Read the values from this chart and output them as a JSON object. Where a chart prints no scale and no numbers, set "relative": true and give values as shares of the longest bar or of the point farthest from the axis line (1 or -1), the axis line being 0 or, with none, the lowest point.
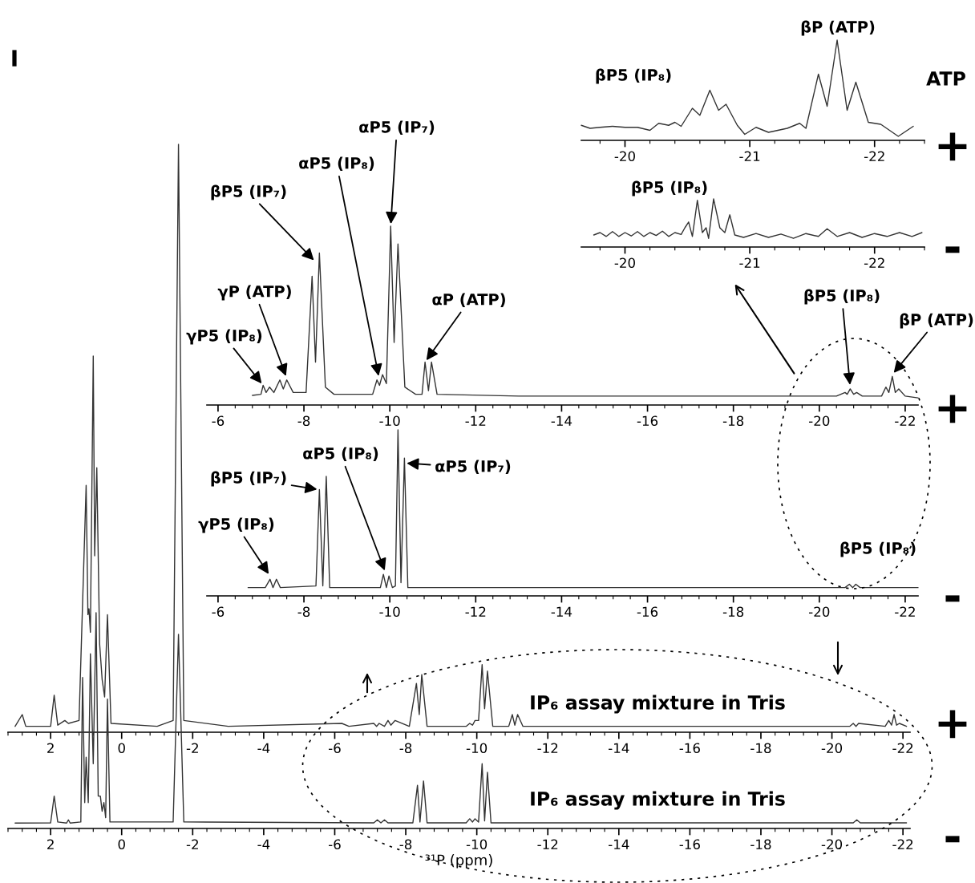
{
  "chart_data": [
    {
      "type": "line",
      "relative": true,
      "xlim": [
        -19.65,
        -22.4
      ],
      "xticks": [
        -20,
        -21,
        -22
      ],
      "annotations": [
        "I",
        "ATP",
        "+",
        {
          "text": "βP5 (IP₈)",
          "x": -20.68,
          "y": 0.5
        },
        {
          "text": "βP (ATP)",
          "x": -21.7,
          "y": 1.0
        }
      ],
      "series": [
        {
          "color": "#333333",
          "x": [
            -19.65,
            -19.72,
            -19.8,
            -19.9,
            -20.0,
            -20.1,
            -20.2,
            -20.27,
            -20.35,
            -20.4,
            -20.45,
            -20.54,
            -20.6,
            -20.68,
            -20.75,
            -20.81,
            -20.9,
            -20.96,
            -21.05,
            -21.15,
            -21.3,
            -21.4,
            -21.45,
            -21.55,
            -21.62,
            -21.7,
            -21.78,
            -21.85,
            -21.95,
            -22.05,
            -22.19,
            -22.31
          ],
          "values": [
            0.15,
            0.12,
            0.13,
            0.14,
            0.13,
            0.13,
            0.1,
            0.17,
            0.15,
            0.18,
            0.14,
            0.32,
            0.25,
            0.5,
            0.3,
            0.36,
            0.15,
            0.06,
            0.13,
            0.08,
            0.12,
            0.17,
            0.12,
            0.66,
            0.34,
            1.0,
            0.3,
            0.58,
            0.18,
            0.16,
            0.04,
            0.14
          ]
        }
      ]
    },
    {
      "type": "line",
      "relative": true,
      "xlim": [
        -19.65,
        -22.4
      ],
      "xticks": [
        -20,
        -21,
        -22
      ],
      "annotations": [
        "-",
        {
          "text": "βP5 (IP₈)",
          "x": -20.71,
          "y": 1.0
        }
      ],
      "series": [
        {
          "color": "#333333",
          "x": [
            -19.75,
            -19.8,
            -19.85,
            -19.9,
            -19.95,
            -20.0,
            -20.05,
            -20.1,
            -20.15,
            -20.2,
            -20.25,
            -20.3,
            -20.35,
            -20.4,
            -20.45,
            -20.48,
            -20.51,
            -20.54,
            -20.58,
            -20.62,
            -20.65,
            -20.67,
            -20.71,
            -20.76,
            -20.8,
            -20.84,
            -20.88,
            -20.95,
            -21.05,
            -21.15,
            -21.25,
            -21.35,
            -21.45,
            -21.55,
            -21.62,
            -21.7,
            -21.8,
            -21.9,
            -22.0,
            -22.1,
            -22.2,
            -22.3,
            -22.38
          ],
          "values": [
            0.25,
            0.3,
            0.22,
            0.32,
            0.22,
            0.3,
            0.23,
            0.32,
            0.22,
            0.3,
            0.24,
            0.33,
            0.22,
            0.3,
            0.26,
            0.4,
            0.52,
            0.22,
            0.97,
            0.3,
            0.4,
            0.18,
            1.0,
            0.4,
            0.3,
            0.67,
            0.25,
            0.2,
            0.28,
            0.2,
            0.27,
            0.18,
            0.28,
            0.22,
            0.38,
            0.22,
            0.3,
            0.2,
            0.28,
            0.22,
            0.3,
            0.22,
            0.3
          ]
        }
      ]
    },
    {
      "type": "line",
      "relative": true,
      "xlim": [
        -5.74,
        -22.3
      ],
      "xticks": [
        -6,
        -8,
        -10,
        -12,
        -14,
        -16,
        -18,
        -20,
        -22
      ],
      "annotations": [
        {
          "text": "αP5 (IP₇)",
          "x": -10.02,
          "y": 1.0
        },
        {
          "text": "αP5 (IP₈)",
          "x": -9.75,
          "y": 0.15
        },
        {
          "text": "βP5 (IP₇)",
          "x": -8.27,
          "y": 0.8
        },
        {
          "text": "γP (ATP)",
          "x": -7.6,
          "y": 0.15
        },
        {
          "text": "γP5 (IP₈)",
          "x": -7.05,
          "y": 0.11
        },
        {
          "text": "αP (ATP)",
          "x": -10.82,
          "y": 0.24
        },
        {
          "text": "βP5 (IP₈)",
          "x": -20.72,
          "y": 0.1
        },
        {
          "text": "βP (ATP)",
          "x": -21.7,
          "y": 0.17
        },
        "+"
      ],
      "series": [
        {
          "color": "#333333",
          "x": [
            -6.8,
            -7.0,
            -7.05,
            -7.12,
            -7.2,
            -7.3,
            -7.44,
            -7.52,
            -7.6,
            -7.75,
            -8.05,
            -8.19,
            -8.27,
            -8.36,
            -8.5,
            -8.7,
            -9.6,
            -9.7,
            -9.76,
            -9.83,
            -9.92,
            -10.02,
            -10.1,
            -10.19,
            -10.35,
            -10.6,
            -10.75,
            -10.82,
            -10.9,
            -10.97,
            -11.1,
            -13,
            -16,
            -20.4,
            -20.6,
            -20.65,
            -20.72,
            -20.8,
            -20.87,
            -21.0,
            -21.45,
            -21.55,
            -21.62,
            -21.7,
            -21.77,
            -21.85,
            -22.0,
            -22.3
          ],
          "values": [
            0.054,
            0.06,
            0.11,
            0.07,
            0.1,
            0.07,
            0.14,
            0.09,
            0.14,
            0.07,
            0.07,
            0.72,
            0.24,
            0.85,
            0.1,
            0.06,
            0.06,
            0.14,
            0.11,
            0.17,
            0.12,
            1.0,
            0.35,
            0.9,
            0.1,
            0.06,
            0.06,
            0.24,
            0.08,
            0.24,
            0.06,
            0.05,
            0.05,
            0.05,
            0.07,
            0.06,
            0.09,
            0.06,
            0.07,
            0.05,
            0.05,
            0.1,
            0.07,
            0.16,
            0.07,
            0.09,
            0.05,
            0.04
          ]
        }
      ]
    },
    {
      "type": "line",
      "relative": true,
      "xlim": [
        -5.74,
        -22.3
      ],
      "xticks": [
        -6,
        -8,
        -10,
        -12,
        -14,
        -16,
        -18,
        -20,
        -22
      ],
      "annotations": [
        {
          "text": "βP5 (IP₇)",
          "x": -8.36,
          "y": 0.64
        },
        {
          "text": "αP5 (IP₈)",
          "x": -9.9,
          "y": 0.14
        },
        {
          "text": "αP5 (IP₇)",
          "x": -10.34,
          "y": 0.8
        },
        {
          "text": "γP5 (IP₈)",
          "x": -7.21,
          "y": 0.12
        },
        {
          "text": "βP5 (IP₈)",
          "x": -20.75,
          "y": 0.07
        },
        "-"
      ],
      "series": [
        {
          "color": "#333333",
          "x": [
            -6.7,
            -7.1,
            -7.21,
            -7.28,
            -7.36,
            -7.45,
            -8.28,
            -8.36,
            -8.44,
            -8.52,
            -8.6,
            -9.78,
            -9.85,
            -9.92,
            -9.98,
            -10.06,
            -10.13,
            -10.19,
            -10.26,
            -10.34,
            -10.42,
            -20.6,
            -20.7,
            -20.78,
            -20.85,
            -20.95,
            -22.3
          ],
          "values": [
            0.05,
            0.05,
            0.1,
            0.05,
            0.1,
            0.05,
            0.06,
            0.64,
            0.06,
            0.72,
            0.05,
            0.05,
            0.13,
            0.05,
            0.12,
            0.05,
            0.06,
            1.0,
            0.08,
            0.83,
            0.05,
            0.05,
            0.07,
            0.05,
            0.07,
            0.05,
            0.05
          ]
        }
      ]
    },
    {
      "type": "line",
      "relative": true,
      "xlim": [
        3.2,
        -22.2
      ],
      "xticks": [
        2,
        0,
        -2,
        -4,
        -6,
        -8,
        -10,
        -12,
        -14,
        -16,
        -18,
        -20,
        -22
      ],
      "annotations": [
        "IP₆ assay mixture in Tris",
        "+"
      ],
      "series": [
        {
          "color": "#333333",
          "x": [
            3.0,
            2.8,
            2.7,
            2.0,
            1.9,
            1.8,
            1.6,
            1.5,
            1.2,
            1.0,
            0.95,
            0.92,
            0.88,
            0.8,
            0.76,
            0.7,
            0.62,
            0.55,
            0.48,
            0.4,
            0.3,
            -1.0,
            -1.45,
            -1.6,
            -1.75,
            -3,
            -6.2,
            -6.4,
            -7.1,
            -7.18,
            -7.25,
            -7.4,
            -7.5,
            -7.58,
            -7.7,
            -8.1,
            -8.3,
            -8.38,
            -8.45,
            -8.6,
            -9.7,
            -9.8,
            -9.88,
            -9.95,
            -10.05,
            -10.15,
            -10.22,
            -10.3,
            -10.45,
            -10.9,
            -11.0,
            -11.07,
            -11.15,
            -11.3,
            -20.5,
            -20.6,
            -20.68,
            -20.75,
            -21.5,
            -21.6,
            -21.68,
            -21.75,
            -21.82,
            -21.9,
            -22.1
          ],
          "values": [
            0.01,
            0.03,
            0.01,
            0.01,
            0.063,
            0.012,
            0.02,
            0.015,
            0.02,
            0.42,
            0.2,
            0.21,
            0.17,
            0.64,
            0.3,
            0.45,
            0.15,
            0.09,
            0.06,
            0.2,
            0.015,
            0.01,
            0.02,
            1.0,
            0.02,
            0.01,
            0.015,
            0.01,
            0.015,
            0.01,
            0.015,
            0.01,
            0.02,
            0.012,
            0.02,
            0.01,
            0.083,
            0.03,
            0.098,
            0.01,
            0.01,
            0.015,
            0.012,
            0.02,
            0.02,
            0.115,
            0.04,
            0.104,
            0.01,
            0.01,
            0.03,
            0.012,
            0.03,
            0.01,
            0.01,
            0.015,
            0.01,
            0.015,
            0.01,
            0.02,
            0.012,
            0.03,
            0.012,
            0.015,
            0.01
          ]
        }
      ]
    },
    {
      "type": "line",
      "relative": true,
      "xlim": [
        3.2,
        -22.2
      ],
      "xticks": [
        2,
        0,
        -2,
        -4,
        -6,
        -8,
        -10,
        -12,
        -14,
        -16,
        -18,
        -20,
        -22
      ],
      "xlabel": "³¹P (ppm)",
      "annotations": [
        "IP₆ assay mixture in Tris",
        "-"
      ],
      "series": [
        {
          "color": "#333333",
          "x": [
            3.0,
            2.0,
            1.9,
            1.8,
            1.55,
            1.5,
            1.45,
            1.15,
            1.1,
            1.04,
            1.0,
            0.94,
            0.88,
            0.8,
            0.72,
            0.66,
            0.6,
            0.55,
            0.5,
            0.45,
            0.4,
            0.33,
            -1.45,
            -1.6,
            -1.75,
            -7.1,
            -7.2,
            -7.3,
            -7.4,
            -7.5,
            -8.2,
            -8.33,
            -8.4,
            -8.5,
            -8.6,
            -9.7,
            -9.8,
            -9.88,
            -9.95,
            -10.05,
            -10.15,
            -10.22,
            -10.3,
            -10.4,
            -20.6,
            -20.7,
            -20.8,
            -22.1
          ],
          "values": [
            0.025,
            0.026,
            0.15,
            0.03,
            0.025,
            0.04,
            0.025,
            0.03,
            0.7,
            0.12,
            0.33,
            0.12,
            0.81,
            0.3,
            1.0,
            0.15,
            0.15,
            0.08,
            0.12,
            0.05,
            0.6,
            0.03,
            0.03,
            0.9,
            0.03,
            0.026,
            0.04,
            0.026,
            0.04,
            0.026,
            0.026,
            0.2,
            0.03,
            0.22,
            0.026,
            0.026,
            0.045,
            0.03,
            0.045,
            0.03,
            0.3,
            0.035,
            0.26,
            0.026,
            0.026,
            0.04,
            0.026,
            0.026
          ]
        }
      ]
    }
  ]
}
